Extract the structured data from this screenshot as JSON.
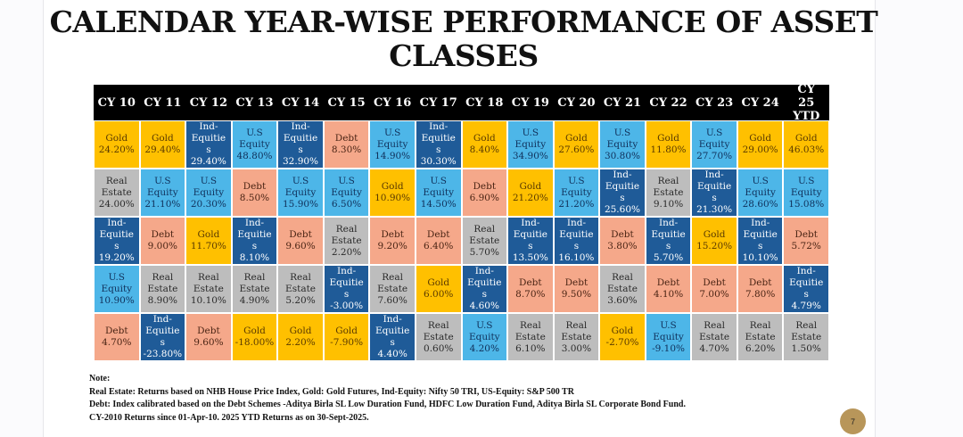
{
  "title": "CALENDAR YEAR-WISE PERFORMANCE OF ASSET CLASSES",
  "asset_colors": {
    "Gold": {
      "bg": "#FFC000",
      "fg": "#5a3a00"
    },
    "U.S Equity": {
      "bg": "#4DB6E8",
      "fg": "#10305a"
    },
    "Ind-Equities": {
      "bg": "#1F5B98",
      "fg": "#ffffff"
    },
    "Debt": {
      "bg": "#F5A88A",
      "fg": "#4a2414"
    },
    "Real Estate": {
      "bg": "#BDBDBD",
      "fg": "#2a2a2a"
    }
  },
  "columns": [
    {
      "year": "CY 10",
      "cells": [
        [
          "Gold",
          "24.20%"
        ],
        [
          "Real Estate",
          "24.00%"
        ],
        [
          "Ind-Equities",
          "19.20%"
        ],
        [
          "U.S Equity",
          "10.90%"
        ],
        [
          "Debt",
          "4.70%"
        ]
      ]
    },
    {
      "year": "CY 11",
      "cells": [
        [
          "Gold",
          "29.40%"
        ],
        [
          "U.S Equity",
          "21.10%"
        ],
        [
          "Debt",
          "9.00%"
        ],
        [
          "Real Estate",
          "8.90%"
        ],
        [
          "Ind-Equities",
          "-23.80%"
        ]
      ]
    },
    {
      "year": "CY 12",
      "cells": [
        [
          "Ind-Equities",
          "29.40%"
        ],
        [
          "U.S Equity",
          "20.30%"
        ],
        [
          "Gold",
          "11.70%"
        ],
        [
          "Real Estate",
          "10.10%"
        ],
        [
          "Debt",
          "9.60%"
        ]
      ]
    },
    {
      "year": "CY 13",
      "cells": [
        [
          "U.S Equity",
          "48.80%"
        ],
        [
          "Debt",
          "8.50%"
        ],
        [
          "Ind-Equities",
          "8.10%"
        ],
        [
          "Real Estate",
          "4.90%"
        ],
        [
          "Gold",
          "-18.00%"
        ]
      ]
    },
    {
      "year": "CY 14",
      "cells": [
        [
          "Ind-Equities",
          "32.90%"
        ],
        [
          "U.S Equity",
          "15.90%"
        ],
        [
          "Debt",
          "9.60%"
        ],
        [
          "Real Estate",
          "5.20%"
        ],
        [
          "Gold",
          "2.20%"
        ]
      ]
    },
    {
      "year": "CY 15",
      "cells": [
        [
          "Debt",
          "8.30%"
        ],
        [
          "U.S Equity",
          "6.50%"
        ],
        [
          "Real Estate",
          "2.20%"
        ],
        [
          "Ind-Equities",
          "-3.00%"
        ],
        [
          "Gold",
          "-7.90%"
        ]
      ]
    },
    {
      "year": "CY 16",
      "cells": [
        [
          "U.S Equity",
          "14.90%"
        ],
        [
          "Gold",
          "10.90%"
        ],
        [
          "Debt",
          "9.20%"
        ],
        [
          "Real Estate",
          "7.60%"
        ],
        [
          "Ind-Equities",
          "4.40%"
        ]
      ]
    },
    {
      "year": "CY 17",
      "cells": [
        [
          "Ind-Equities",
          "30.30%"
        ],
        [
          "U.S Equity",
          "14.50%"
        ],
        [
          "Debt",
          "6.40%"
        ],
        [
          "Gold",
          "6.00%"
        ],
        [
          "Real Estate",
          "0.60%"
        ]
      ]
    },
    {
      "year": "CY 18",
      "cells": [
        [
          "Gold",
          "8.40%"
        ],
        [
          "Debt",
          "6.90%"
        ],
        [
          "Real Estate",
          "5.70%"
        ],
        [
          "Ind-Equities",
          "4.60%"
        ],
        [
          "U.S Equity",
          "4.20%"
        ]
      ]
    },
    {
      "year": "CY 19",
      "cells": [
        [
          "U.S Equity",
          "34.90%"
        ],
        [
          "Gold",
          "21.20%"
        ],
        [
          "Ind-Equities",
          "13.50%"
        ],
        [
          "Debt",
          "8.70%"
        ],
        [
          "Real Estate",
          "6.10%"
        ]
      ]
    },
    {
      "year": "CY 20",
      "cells": [
        [
          "Gold",
          "27.60%"
        ],
        [
          "U.S Equity",
          "21.20%"
        ],
        [
          "Ind-Equities",
          "16.10%"
        ],
        [
          "Debt",
          "9.50%"
        ],
        [
          "Real Estate",
          "3.00%"
        ]
      ]
    },
    {
      "year": "CY 21",
      "cells": [
        [
          "U.S Equity",
          "30.80%"
        ],
        [
          "Ind-Equities",
          "25.60%"
        ],
        [
          "Debt",
          "3.80%"
        ],
        [
          "Real Estate",
          "3.60%"
        ],
        [
          "Gold",
          "-2.70%"
        ]
      ]
    },
    {
      "year": "CY 22",
      "cells": [
        [
          "Gold",
          "11.80%"
        ],
        [
          "Real Estate",
          "9.10%"
        ],
        [
          "Ind-Equities",
          "5.70%"
        ],
        [
          "Debt",
          "4.10%"
        ],
        [
          "U.S Equity",
          "-9.10%"
        ]
      ]
    },
    {
      "year": "CY 23",
      "cells": [
        [
          "U.S Equity",
          "27.70%"
        ],
        [
          "Ind-Equities",
          "21.30%"
        ],
        [
          "Gold",
          "15.20%"
        ],
        [
          "Debt",
          "7.00%"
        ],
        [
          "Real Estate",
          "4.70%"
        ]
      ]
    },
    {
      "year": "CY 24",
      "cells": [
        [
          "Gold",
          "29.00%"
        ],
        [
          "U.S Equity",
          "28.60%"
        ],
        [
          "Ind-Equities",
          "10.10%"
        ],
        [
          "Debt",
          "7.80%"
        ],
        [
          "Real Estate",
          "6.20%"
        ]
      ]
    },
    {
      "year": "CY 25 YTD",
      "cells": [
        [
          "Gold",
          "46.03%"
        ],
        [
          "U.S Equity",
          "15.08%"
        ],
        [
          "Debt",
          "5.72%"
        ],
        [
          "Ind-Equities",
          "4.79%"
        ],
        [
          "Real Estate",
          "1.50%"
        ]
      ]
    }
  ],
  "notes": [
    "Note:",
    "Real Estate: Returns based on NHB House Price Index, Gold: Gold Futures, Ind-Equity: Nifty 50 TRI, US-Equity: S&P 500 TR",
    "Debt: Index calibrated based on the Debt Schemes -Aditya Birla SL Low Duration Fund, HDFC Low Duration Fund, Aditya Birla SL Corporate Bond Fund.",
    "CY-2010 Returns since 01-Apr-10. 2025 YTD Returns as on 30-Sept-2025."
  ],
  "page_number": "7"
}
